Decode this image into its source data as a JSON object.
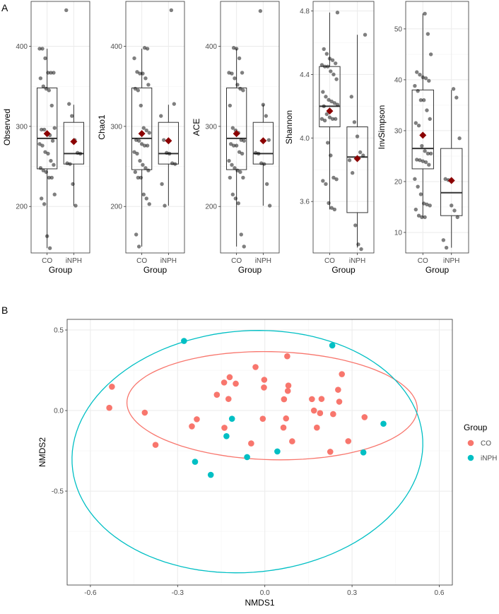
{
  "chart_data": [
    {
      "type": "box",
      "panel_label": "A",
      "colors": {
        "point": "#000000",
        "mean": "#8B0000",
        "box": "#333333"
      },
      "panels": [
        {
          "ylabel": "Observed",
          "xlabel": "Group",
          "categories": [
            "CO",
            "iNPH"
          ],
          "ylim": [
            142,
            456
          ],
          "yticks": [
            "200",
            "300",
            "400"
          ],
          "ytick_values": [
            200,
            300,
            400
          ],
          "boxes": [
            {
              "group": "CO",
              "min": 148,
              "q1": 247,
              "median": 285,
              "q3": 348,
              "max": 397,
              "mean": 291
            },
            {
              "group": "iNPH",
              "min": 201,
              "q1": 253,
              "median": 266,
              "q3": 305,
              "max": 327,
              "mean": 281
            }
          ],
          "points": {
            "CO": [
              397,
              397,
              385,
              367,
              367,
              367,
              360,
              350,
              347,
              345,
              326,
              298,
              296,
              296,
              290,
              289,
              282,
              278,
              276,
              268,
              266,
              257,
              252,
              248,
              245,
              243,
              236,
              236,
              215,
              210,
              203,
              163,
              148
            ],
            "iNPH": [
              445,
              328,
              313,
              283,
              267,
              266,
              254,
              253,
              228,
              201
            ]
          }
        },
        {
          "ylabel": "Chao1",
          "xlabel": "Group",
          "categories": [
            "CO",
            "iNPH"
          ],
          "ylim": [
            142,
            456
          ],
          "yticks": [
            "200",
            "300",
            "400"
          ],
          "ytick_values": [
            200,
            300,
            400
          ],
          "boxes": [
            {
              "group": "CO",
              "min": 150,
              "q1": 246,
              "median": 285,
              "q3": 348,
              "max": 397,
              "mean": 291
            },
            {
              "group": "iNPH",
              "min": 201,
              "q1": 253,
              "median": 266,
              "q3": 305,
              "max": 327,
              "mean": 282
            }
          ],
          "points": {
            "CO": [
              398,
              397,
              385,
              368,
              366,
              366,
              360,
              352,
              347,
              345,
              326,
              298,
              295,
              292,
              283,
              282,
              278,
              276,
              276,
              268,
              266,
              257,
              252,
              248,
              245,
              243,
              236,
              236,
              215,
              210,
              203,
              165,
              150
            ],
            "iNPH": [
              445,
              328,
              313,
              283,
              267,
              266,
              254,
              253,
              228,
              201
            ]
          }
        },
        {
          "ylabel": "ACE",
          "xlabel": "Group",
          "categories": [
            "CO",
            "iNPH"
          ],
          "ylim": [
            142,
            456
          ],
          "yticks": [
            "200",
            "300",
            "400"
          ],
          "ytick_values": [
            200,
            300,
            400
          ],
          "boxes": [
            {
              "group": "CO",
              "min": 150,
              "q1": 246,
              "median": 285,
              "q3": 348,
              "max": 397,
              "mean": 291
            },
            {
              "group": "iNPH",
              "min": 201,
              "q1": 253,
              "median": 266,
              "q3": 305,
              "max": 327,
              "mean": 282
            }
          ],
          "points": {
            "CO": [
              398,
              397,
              385,
              367,
              367,
              366,
              360,
              352,
              347,
              345,
              326,
              298,
              295,
              292,
              283,
              282,
              278,
              276,
              276,
              268,
              266,
              257,
              252,
              248,
              245,
              243,
              236,
              236,
              215,
              210,
              204,
              165,
              150
            ],
            "iNPH": [
              444,
              327,
              313,
              283,
              267,
              266,
              254,
              253,
              228,
              201
            ]
          }
        },
        {
          "ylabel": "Shannon",
          "xlabel": "Group",
          "categories": [
            "CO",
            "iNPH"
          ],
          "ylim": [
            3.276,
            4.86
          ],
          "yticks": [
            "3.6",
            "4.0",
            "4.4",
            "4.8"
          ],
          "ytick_values": [
            3.6,
            4.0,
            4.4,
            4.8
          ],
          "boxes": [
            {
              "group": "CO",
              "min": 3.55,
              "q1": 4.07,
              "median": 4.2,
              "q3": 4.45,
              "max": 4.79,
              "mean": 4.17
            },
            {
              "group": "iNPH",
              "min": 3.31,
              "q1": 3.53,
              "median": 3.88,
              "q3": 4.07,
              "max": 4.65,
              "mean": 3.87
            }
          ],
          "points": {
            "CO": [
              4.79,
              4.56,
              4.53,
              4.5,
              4.49,
              4.47,
              4.46,
              4.45,
              4.45,
              4.42,
              4.4,
              4.37,
              4.29,
              4.26,
              4.24,
              4.23,
              4.22,
              4.21,
              4.2,
              4.15,
              4.13,
              4.12,
              4.12,
              4.12,
              4.11,
              3.97,
              3.89,
              3.75,
              3.74,
              3.73,
              3.71,
              3.59,
              3.56,
              3.55
            ],
            "iNPH": [
              4.65,
              4.26,
              4.1,
              4.01,
              3.91,
              3.89,
              3.86,
              3.78,
              3.45,
              3.33,
              3.3
            ]
          }
        },
        {
          "ylabel": "InvSimpson",
          "xlabel": "Group",
          "categories": [
            "CO",
            "iNPH"
          ],
          "ylim": [
            5.97,
            55.4
          ],
          "yticks": [
            "10",
            "20",
            "30",
            "40",
            "50"
          ],
          "ytick_values": [
            10,
            20,
            30,
            40,
            50
          ],
          "boxes": [
            {
              "group": "CO",
              "min": 13,
              "q1": 22.5,
              "median": 26.5,
              "q3": 38,
              "max": 53,
              "mean": 29.1
            },
            {
              "group": "iNPH",
              "min": 7,
              "q1": 13.3,
              "median": 17.8,
              "q3": 26.5,
              "max": 38,
              "mean": 20.2
            }
          ],
          "points": {
            "CO": [
              53,
              49,
              45,
              41.5,
              41,
              40.5,
              40.3,
              39.8,
              38.8,
              37.8,
              36,
              36,
              34,
              32.3,
              31.5,
              31,
              27,
              26,
              25.5,
              25.5,
              24.3,
              24.2,
              24,
              23.8,
              23.3,
              20.5,
              19,
              17.5,
              15.7,
              15.5,
              15.3,
              14.5,
              13.3,
              13,
              13
            ],
            "iNPH": [
              38.2,
              36.5,
              28.5,
              20.5,
              20.3,
              15.3,
              14.3,
              13,
              8.5,
              7
            ]
          }
        }
      ]
    },
    {
      "type": "scatter",
      "panel_label": "B",
      "xlabel": "NMDS1",
      "ylabel": "NMDS2",
      "xlim": [
        -0.68,
        0.645
      ],
      "ylim": [
        -1.083,
        0.566
      ],
      "xticks": [
        "-0.6",
        "-0.3",
        "0.0",
        "0.3",
        "0.6"
      ],
      "xtick_values": [
        -0.6,
        -0.3,
        0,
        0.3,
        0.6
      ],
      "yticks": [
        "-0.5",
        "0.0",
        "0.5"
      ],
      "ytick_values": [
        -0.5,
        0,
        0.5
      ],
      "legend": {
        "title": "Group",
        "position": "right"
      },
      "series": [
        {
          "name": "CO",
          "color": "#F8766D",
          "ellipse": {
            "cx": 0.025,
            "cy": 0.03,
            "rx": 0.5,
            "ry": 0.335,
            "angle_deg": -4
          },
          "points": [
            [
              -0.526,
              0.148
            ],
            [
              -0.535,
              0.017
            ],
            [
              -0.413,
              -0.013
            ],
            [
              -0.376,
              -0.213
            ],
            [
              -0.234,
              -0.054
            ],
            [
              -0.251,
              -0.098
            ],
            [
              -0.139,
              -0.107
            ],
            [
              -0.047,
              -0.204
            ],
            [
              -0.007,
              -0.051
            ],
            [
              0.073,
              -0.049
            ],
            [
              0.064,
              -0.106
            ],
            [
              0.094,
              -0.191
            ],
            [
              0.179,
              -0.106
            ],
            [
              0.225,
              -0.256
            ],
            [
              0.287,
              -0.19
            ],
            [
              0.343,
              -0.041
            ],
            [
              0.235,
              -0.022
            ],
            [
              0.19,
              -0.016
            ],
            [
              0.169,
              0.0
            ],
            [
              0.256,
              0.055
            ],
            [
              0.252,
              0.129
            ],
            [
              0.265,
              0.226
            ],
            [
              0.162,
              0.071
            ],
            [
              0.195,
              0.072
            ],
            [
              0.066,
              0.07
            ],
            [
              0.079,
              0.122
            ],
            [
              0.081,
              0.155
            ],
            [
              0.077,
              0.337
            ],
            [
              -0.032,
              0.27
            ],
            [
              -0.002,
              0.191
            ],
            [
              -0.003,
              0.143
            ],
            [
              -0.121,
              0.207
            ],
            [
              -0.14,
              0.174
            ],
            [
              -0.1,
              0.167
            ],
            [
              -0.165,
              0.098
            ],
            [
              -0.125,
              0.072
            ]
          ]
        },
        {
          "name": "iNPH",
          "color": "#00BFC4",
          "ellipse": {
            "cx": -0.06,
            "cy": -0.255,
            "rx": 0.6,
            "ry": 0.755,
            "angle_deg": -8
          },
          "points": [
            [
              -0.278,
              0.432
            ],
            [
              0.232,
              0.404
            ],
            [
              -0.113,
              -0.051
            ],
            [
              0.408,
              -0.082
            ],
            [
              -0.132,
              -0.159
            ],
            [
              0.043,
              -0.254
            ],
            [
              0.339,
              -0.26
            ],
            [
              -0.061,
              -0.289
            ],
            [
              -0.24,
              -0.318
            ],
            [
              -0.186,
              -0.399
            ]
          ]
        }
      ]
    }
  ]
}
